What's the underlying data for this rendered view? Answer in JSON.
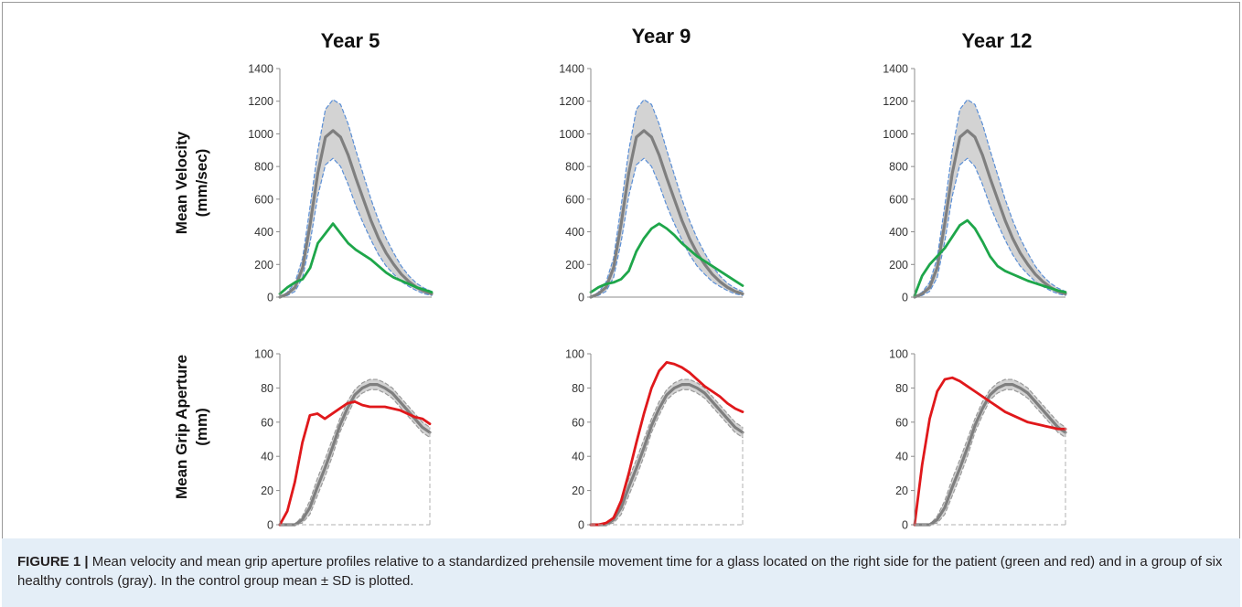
{
  "figure": {
    "column_titles": [
      "Year 5",
      "Year 9",
      "Year 12"
    ],
    "row_labels": [
      {
        "line1": "Mean Velocity",
        "line2": "(mm/sec)"
      },
      {
        "line1": "Mean Grip Aperture",
        "line2": "(mm)"
      }
    ],
    "caption": {
      "label": "FIGURE 1 |",
      "text": " Mean velocity and mean grip aperture profiles relative to a standardized prehensile movement time for a glass located on the right side for the patient (green and red) and in a group of six healthy controls (gray). In the control group mean ± SD is plotted."
    }
  },
  "colors": {
    "patient_velocity": "#1ea64a",
    "patient_aperture": "#e0181b",
    "control_mean": "#7f7f7f",
    "control_sd_fill": "#d3d3d3",
    "velocity_sd_line": "#5b8fd6",
    "aperture_sd_line": "#9a9a9a"
  },
  "chart_data": [
    {
      "type": "line",
      "panel": "Year 5 velocity",
      "title": "Year 5",
      "ylabel": "Mean Velocity (mm/sec)",
      "ylim": [
        0,
        1400
      ],
      "yticks": [
        "0",
        "200",
        "400",
        "600",
        "800",
        "1000",
        "1200",
        "1400"
      ],
      "x": [
        0,
        0.05,
        0.1,
        0.15,
        0.2,
        0.25,
        0.3,
        0.35,
        0.4,
        0.45,
        0.5,
        0.55,
        0.6,
        0.65,
        0.7,
        0.75,
        0.8,
        0.85,
        0.9,
        0.95,
        1
      ],
      "series": [
        {
          "role": "patient",
          "values": [
            20,
            60,
            90,
            110,
            180,
            330,
            390,
            450,
            390,
            330,
            290,
            260,
            230,
            190,
            150,
            120,
            100,
            80,
            60,
            45,
            30
          ]
        },
        {
          "role": "control_mean",
          "values": [
            0,
            20,
            60,
            180,
            450,
            760,
            980,
            1020,
            980,
            870,
            730,
            600,
            470,
            360,
            270,
            200,
            140,
            95,
            60,
            35,
            20
          ]
        },
        {
          "role": "control_mean_plus_sd",
          "values": [
            0,
            30,
            90,
            240,
            560,
            900,
            1150,
            1210,
            1180,
            1060,
            900,
            750,
            600,
            470,
            360,
            270,
            190,
            130,
            85,
            55,
            35
          ]
        },
        {
          "role": "control_mean_minus_sd",
          "values": [
            0,
            10,
            35,
            120,
            340,
            620,
            810,
            850,
            800,
            690,
            560,
            450,
            350,
            260,
            190,
            140,
            95,
            65,
            40,
            20,
            10
          ]
        }
      ]
    },
    {
      "type": "line",
      "panel": "Year 9 velocity",
      "title": "Year 9",
      "ylabel": "Mean Velocity (mm/sec)",
      "ylim": [
        0,
        1400
      ],
      "yticks": [
        "0",
        "200",
        "400",
        "600",
        "800",
        "1000",
        "1200",
        "1400"
      ],
      "x": [
        0,
        0.05,
        0.1,
        0.15,
        0.2,
        0.25,
        0.3,
        0.35,
        0.4,
        0.45,
        0.5,
        0.55,
        0.6,
        0.65,
        0.7,
        0.75,
        0.8,
        0.85,
        0.9,
        0.95,
        1
      ],
      "series": [
        {
          "role": "patient",
          "values": [
            30,
            60,
            80,
            90,
            110,
            160,
            280,
            360,
            420,
            450,
            420,
            380,
            330,
            290,
            250,
            220,
            190,
            160,
            130,
            100,
            70
          ]
        },
        {
          "role": "control_mean",
          "values": [
            0,
            20,
            60,
            180,
            450,
            760,
            980,
            1020,
            980,
            870,
            730,
            600,
            470,
            360,
            270,
            200,
            140,
            95,
            60,
            35,
            20
          ]
        },
        {
          "role": "control_mean_plus_sd",
          "values": [
            0,
            30,
            90,
            240,
            560,
            900,
            1150,
            1210,
            1180,
            1060,
            900,
            750,
            600,
            470,
            360,
            270,
            190,
            130,
            85,
            55,
            35
          ]
        },
        {
          "role": "control_mean_minus_sd",
          "values": [
            0,
            10,
            35,
            120,
            340,
            620,
            810,
            850,
            800,
            690,
            560,
            450,
            350,
            260,
            190,
            140,
            95,
            65,
            40,
            20,
            10
          ]
        }
      ]
    },
    {
      "type": "line",
      "panel": "Year 12 velocity",
      "title": "Year 12",
      "ylabel": "Mean Velocity (mm/sec)",
      "ylim": [
        0,
        1400
      ],
      "yticks": [
        "0",
        "200",
        "400",
        "600",
        "800",
        "1000",
        "1200",
        "1400"
      ],
      "x": [
        0,
        0.05,
        0.1,
        0.15,
        0.2,
        0.25,
        0.3,
        0.35,
        0.4,
        0.45,
        0.5,
        0.55,
        0.6,
        0.65,
        0.7,
        0.75,
        0.8,
        0.85,
        0.9,
        0.95,
        1
      ],
      "series": [
        {
          "role": "patient",
          "values": [
            10,
            130,
            200,
            250,
            300,
            370,
            440,
            470,
            420,
            340,
            250,
            190,
            160,
            140,
            120,
            100,
            85,
            70,
            55,
            40,
            30
          ]
        },
        {
          "role": "control_mean",
          "values": [
            0,
            20,
            60,
            180,
            450,
            760,
            980,
            1020,
            980,
            870,
            730,
            600,
            470,
            360,
            270,
            200,
            140,
            95,
            60,
            35,
            20
          ]
        },
        {
          "role": "control_mean_plus_sd",
          "values": [
            0,
            30,
            90,
            240,
            560,
            900,
            1150,
            1210,
            1180,
            1060,
            900,
            750,
            600,
            470,
            360,
            270,
            190,
            130,
            85,
            55,
            35
          ]
        },
        {
          "role": "control_mean_minus_sd",
          "values": [
            0,
            10,
            35,
            120,
            340,
            620,
            810,
            850,
            800,
            690,
            560,
            450,
            350,
            260,
            190,
            140,
            95,
            65,
            40,
            20,
            10
          ]
        }
      ]
    },
    {
      "type": "line",
      "panel": "Year 5 aperture",
      "ylabel": "Mean Grip Aperture (mm)",
      "ylim": [
        0,
        100
      ],
      "yticks": [
        "0",
        "20",
        "40",
        "60",
        "80",
        "100"
      ],
      "x": [
        0,
        0.05,
        0.1,
        0.15,
        0.2,
        0.25,
        0.3,
        0.35,
        0.4,
        0.45,
        0.5,
        0.55,
        0.6,
        0.65,
        0.7,
        0.75,
        0.8,
        0.85,
        0.9,
        0.95,
        1
      ],
      "series": [
        {
          "role": "patient",
          "values": [
            0,
            8,
            25,
            48,
            64,
            65,
            62,
            65,
            68,
            71,
            72,
            70,
            69,
            69,
            69,
            68,
            67,
            65,
            63,
            62,
            59
          ]
        },
        {
          "role": "control_mean",
          "values": [
            0,
            0,
            0,
            3,
            10,
            22,
            33,
            45,
            58,
            68,
            76,
            80,
            82,
            82,
            80,
            77,
            72,
            67,
            62,
            57,
            54
          ]
        },
        {
          "role": "control_mean_plus_sd",
          "values": [
            0,
            0,
            0,
            5,
            14,
            27,
            38,
            50,
            62,
            72,
            79,
            83,
            85,
            85,
            83,
            80,
            75,
            70,
            65,
            60,
            57
          ]
        },
        {
          "role": "control_mean_minus_sd",
          "values": [
            0,
            0,
            0,
            1,
            6,
            17,
            28,
            40,
            54,
            64,
            73,
            77,
            79,
            79,
            77,
            74,
            69,
            64,
            59,
            54,
            51
          ]
        }
      ]
    },
    {
      "type": "line",
      "panel": "Year 9 aperture",
      "ylabel": "Mean Grip Aperture (mm)",
      "ylim": [
        0,
        100
      ],
      "yticks": [
        "0",
        "20",
        "40",
        "60",
        "80",
        "100"
      ],
      "x": [
        0,
        0.05,
        0.1,
        0.15,
        0.2,
        0.25,
        0.3,
        0.35,
        0.4,
        0.45,
        0.5,
        0.55,
        0.6,
        0.65,
        0.7,
        0.75,
        0.8,
        0.85,
        0.9,
        0.95,
        1
      ],
      "series": [
        {
          "role": "patient",
          "values": [
            0,
            0,
            1,
            4,
            14,
            30,
            48,
            65,
            80,
            90,
            95,
            94,
            92,
            89,
            85,
            81,
            78,
            75,
            71,
            68,
            66
          ]
        },
        {
          "role": "control_mean",
          "values": [
            0,
            0,
            0,
            3,
            10,
            22,
            33,
            45,
            58,
            68,
            76,
            80,
            82,
            82,
            80,
            77,
            72,
            67,
            62,
            57,
            54
          ]
        },
        {
          "role": "control_mean_plus_sd",
          "values": [
            0,
            0,
            0,
            5,
            14,
            27,
            38,
            50,
            62,
            72,
            79,
            83,
            85,
            85,
            83,
            80,
            75,
            70,
            65,
            60,
            57
          ]
        },
        {
          "role": "control_mean_minus_sd",
          "values": [
            0,
            0,
            0,
            1,
            6,
            17,
            28,
            40,
            54,
            64,
            73,
            77,
            79,
            79,
            77,
            74,
            69,
            64,
            59,
            54,
            51
          ]
        }
      ]
    },
    {
      "type": "line",
      "panel": "Year 12 aperture",
      "ylabel": "Mean Grip Aperture (mm)",
      "ylim": [
        0,
        100
      ],
      "yticks": [
        "0",
        "20",
        "40",
        "60",
        "80",
        "100"
      ],
      "x": [
        0,
        0.05,
        0.1,
        0.15,
        0.2,
        0.25,
        0.3,
        0.35,
        0.4,
        0.45,
        0.5,
        0.55,
        0.6,
        0.65,
        0.7,
        0.75,
        0.8,
        0.85,
        0.9,
        0.95,
        1
      ],
      "series": [
        {
          "role": "patient",
          "values": [
            0,
            35,
            62,
            78,
            85,
            86,
            84,
            81,
            78,
            75,
            72,
            69,
            66,
            64,
            62,
            60,
            59,
            58,
            57,
            56,
            56
          ]
        },
        {
          "role": "control_mean",
          "values": [
            0,
            0,
            0,
            3,
            10,
            22,
            33,
            45,
            58,
            68,
            76,
            80,
            82,
            82,
            80,
            77,
            72,
            67,
            62,
            57,
            54
          ]
        },
        {
          "role": "control_mean_plus_sd",
          "values": [
            0,
            0,
            0,
            5,
            14,
            27,
            38,
            50,
            62,
            72,
            79,
            83,
            85,
            85,
            83,
            80,
            75,
            70,
            65,
            60,
            57
          ]
        },
        {
          "role": "control_mean_minus_sd",
          "values": [
            0,
            0,
            0,
            1,
            6,
            17,
            28,
            40,
            54,
            64,
            73,
            77,
            79,
            79,
            77,
            74,
            69,
            64,
            59,
            54,
            51
          ]
        }
      ]
    }
  ]
}
